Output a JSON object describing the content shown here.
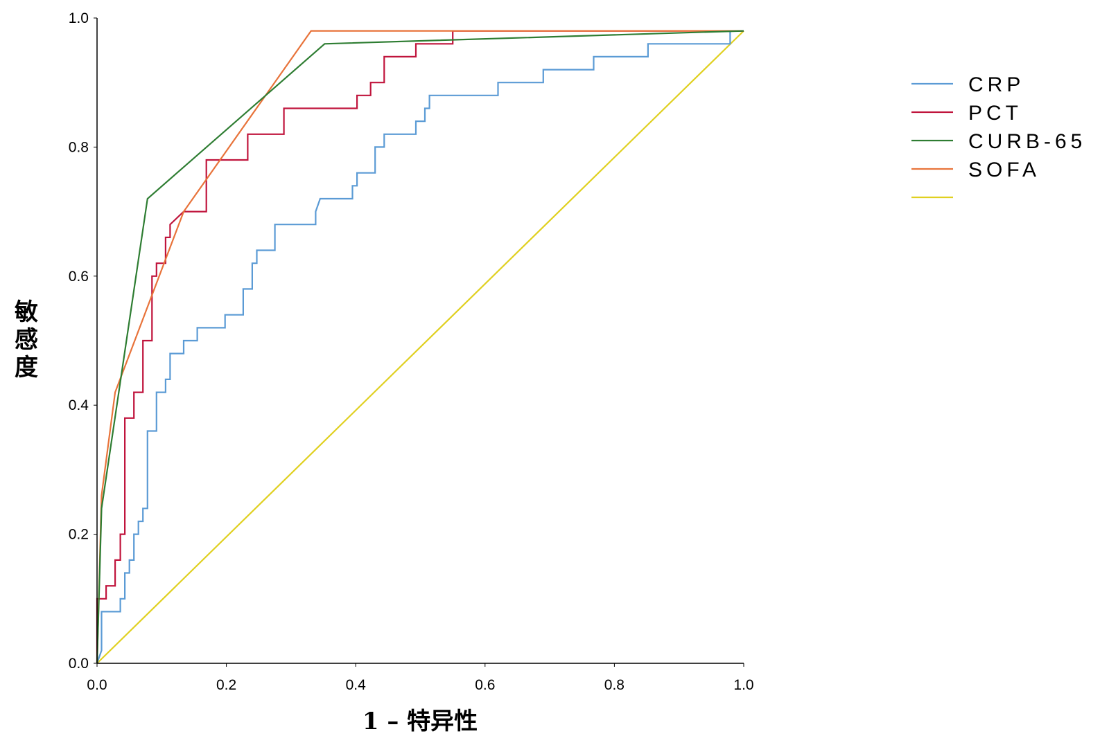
{
  "chart_data": {
    "type": "line",
    "title": "",
    "xlabel": "1 – 特异性",
    "ylabel": "敏感度",
    "xlim": [
      0,
      1
    ],
    "ylim": [
      0,
      1
    ],
    "xticks": [
      "0.0",
      "0.2",
      "0.4",
      "0.6",
      "0.8",
      "1.0"
    ],
    "yticks": [
      "0.0",
      "0.2",
      "0.4",
      "0.6",
      "0.8",
      "1.0"
    ],
    "grid": false,
    "legend_position": "right",
    "series": [
      {
        "name": "CRP",
        "color": "#5b9bd5",
        "points": [
          [
            0,
            0
          ],
          [
            0.007,
            0.02
          ],
          [
            0.007,
            0.08
          ],
          [
            0.036,
            0.08
          ],
          [
            0.036,
            0.1
          ],
          [
            0.043,
            0.1
          ],
          [
            0.043,
            0.14
          ],
          [
            0.05,
            0.14
          ],
          [
            0.05,
            0.16
          ],
          [
            0.057,
            0.16
          ],
          [
            0.057,
            0.2
          ],
          [
            0.064,
            0.2
          ],
          [
            0.064,
            0.22
          ],
          [
            0.071,
            0.22
          ],
          [
            0.071,
            0.24
          ],
          [
            0.078,
            0.24
          ],
          [
            0.078,
            0.36
          ],
          [
            0.092,
            0.36
          ],
          [
            0.092,
            0.42
          ],
          [
            0.106,
            0.42
          ],
          [
            0.106,
            0.44
          ],
          [
            0.113,
            0.44
          ],
          [
            0.113,
            0.48
          ],
          [
            0.134,
            0.48
          ],
          [
            0.134,
            0.5
          ],
          [
            0.155,
            0.5
          ],
          [
            0.155,
            0.52
          ],
          [
            0.198,
            0.52
          ],
          [
            0.198,
            0.54
          ],
          [
            0.226,
            0.54
          ],
          [
            0.226,
            0.58
          ],
          [
            0.24,
            0.58
          ],
          [
            0.24,
            0.62
          ],
          [
            0.247,
            0.62
          ],
          [
            0.247,
            0.64
          ],
          [
            0.275,
            0.64
          ],
          [
            0.275,
            0.68
          ],
          [
            0.338,
            0.68
          ],
          [
            0.338,
            0.7
          ],
          [
            0.345,
            0.72
          ],
          [
            0.395,
            0.72
          ],
          [
            0.395,
            0.74
          ],
          [
            0.402,
            0.74
          ],
          [
            0.402,
            0.76
          ],
          [
            0.43,
            0.76
          ],
          [
            0.43,
            0.8
          ],
          [
            0.444,
            0.8
          ],
          [
            0.444,
            0.82
          ],
          [
            0.493,
            0.82
          ],
          [
            0.493,
            0.84
          ],
          [
            0.507,
            0.84
          ],
          [
            0.507,
            0.86
          ],
          [
            0.514,
            0.86
          ],
          [
            0.514,
            0.88
          ],
          [
            0.62,
            0.88
          ],
          [
            0.62,
            0.9
          ],
          [
            0.69,
            0.9
          ],
          [
            0.69,
            0.92
          ],
          [
            0.768,
            0.92
          ],
          [
            0.768,
            0.94
          ],
          [
            0.852,
            0.94
          ],
          [
            0.852,
            0.96
          ],
          [
            0.979,
            0.96
          ],
          [
            0.979,
            0.98
          ],
          [
            1,
            0.98
          ]
        ]
      },
      {
        "name": "PCT",
        "color": "#c0143c",
        "points": [
          [
            0,
            0
          ],
          [
            0,
            0.1
          ],
          [
            0.014,
            0.1
          ],
          [
            0.014,
            0.12
          ],
          [
            0.028,
            0.12
          ],
          [
            0.028,
            0.16
          ],
          [
            0.036,
            0.16
          ],
          [
            0.036,
            0.2
          ],
          [
            0.043,
            0.2
          ],
          [
            0.043,
            0.38
          ],
          [
            0.057,
            0.38
          ],
          [
            0.057,
            0.42
          ],
          [
            0.071,
            0.42
          ],
          [
            0.071,
            0.5
          ],
          [
            0.085,
            0.5
          ],
          [
            0.085,
            0.6
          ],
          [
            0.092,
            0.6
          ],
          [
            0.092,
            0.62
          ],
          [
            0.106,
            0.62
          ],
          [
            0.106,
            0.66
          ],
          [
            0.113,
            0.66
          ],
          [
            0.113,
            0.68
          ],
          [
            0.134,
            0.7
          ],
          [
            0.169,
            0.7
          ],
          [
            0.169,
            0.78
          ],
          [
            0.233,
            0.78
          ],
          [
            0.233,
            0.82
          ],
          [
            0.289,
            0.82
          ],
          [
            0.289,
            0.86
          ],
          [
            0.402,
            0.86
          ],
          [
            0.402,
            0.88
          ],
          [
            0.423,
            0.88
          ],
          [
            0.423,
            0.9
          ],
          [
            0.444,
            0.9
          ],
          [
            0.444,
            0.94
          ],
          [
            0.493,
            0.94
          ],
          [
            0.493,
            0.96
          ],
          [
            0.55,
            0.96
          ],
          [
            0.55,
            0.98
          ],
          [
            1,
            0.98
          ]
        ]
      },
      {
        "name": "CURB-65",
        "color": "#2e7d32",
        "points": [
          [
            0,
            0
          ],
          [
            0.007,
            0.24
          ],
          [
            0.078,
            0.72
          ],
          [
            0.352,
            0.96
          ],
          [
            1,
            0.98
          ]
        ]
      },
      {
        "name": "SOFA",
        "color": "#e8733a",
        "points": [
          [
            0,
            0
          ],
          [
            0.007,
            0.26
          ],
          [
            0.028,
            0.42
          ],
          [
            0.134,
            0.7
          ],
          [
            0.331,
            0.98
          ],
          [
            1,
            0.98
          ]
        ]
      },
      {
        "name": "",
        "color": "#e0d020",
        "points": [
          [
            0,
            0
          ],
          [
            1,
            0.98
          ]
        ]
      }
    ]
  }
}
